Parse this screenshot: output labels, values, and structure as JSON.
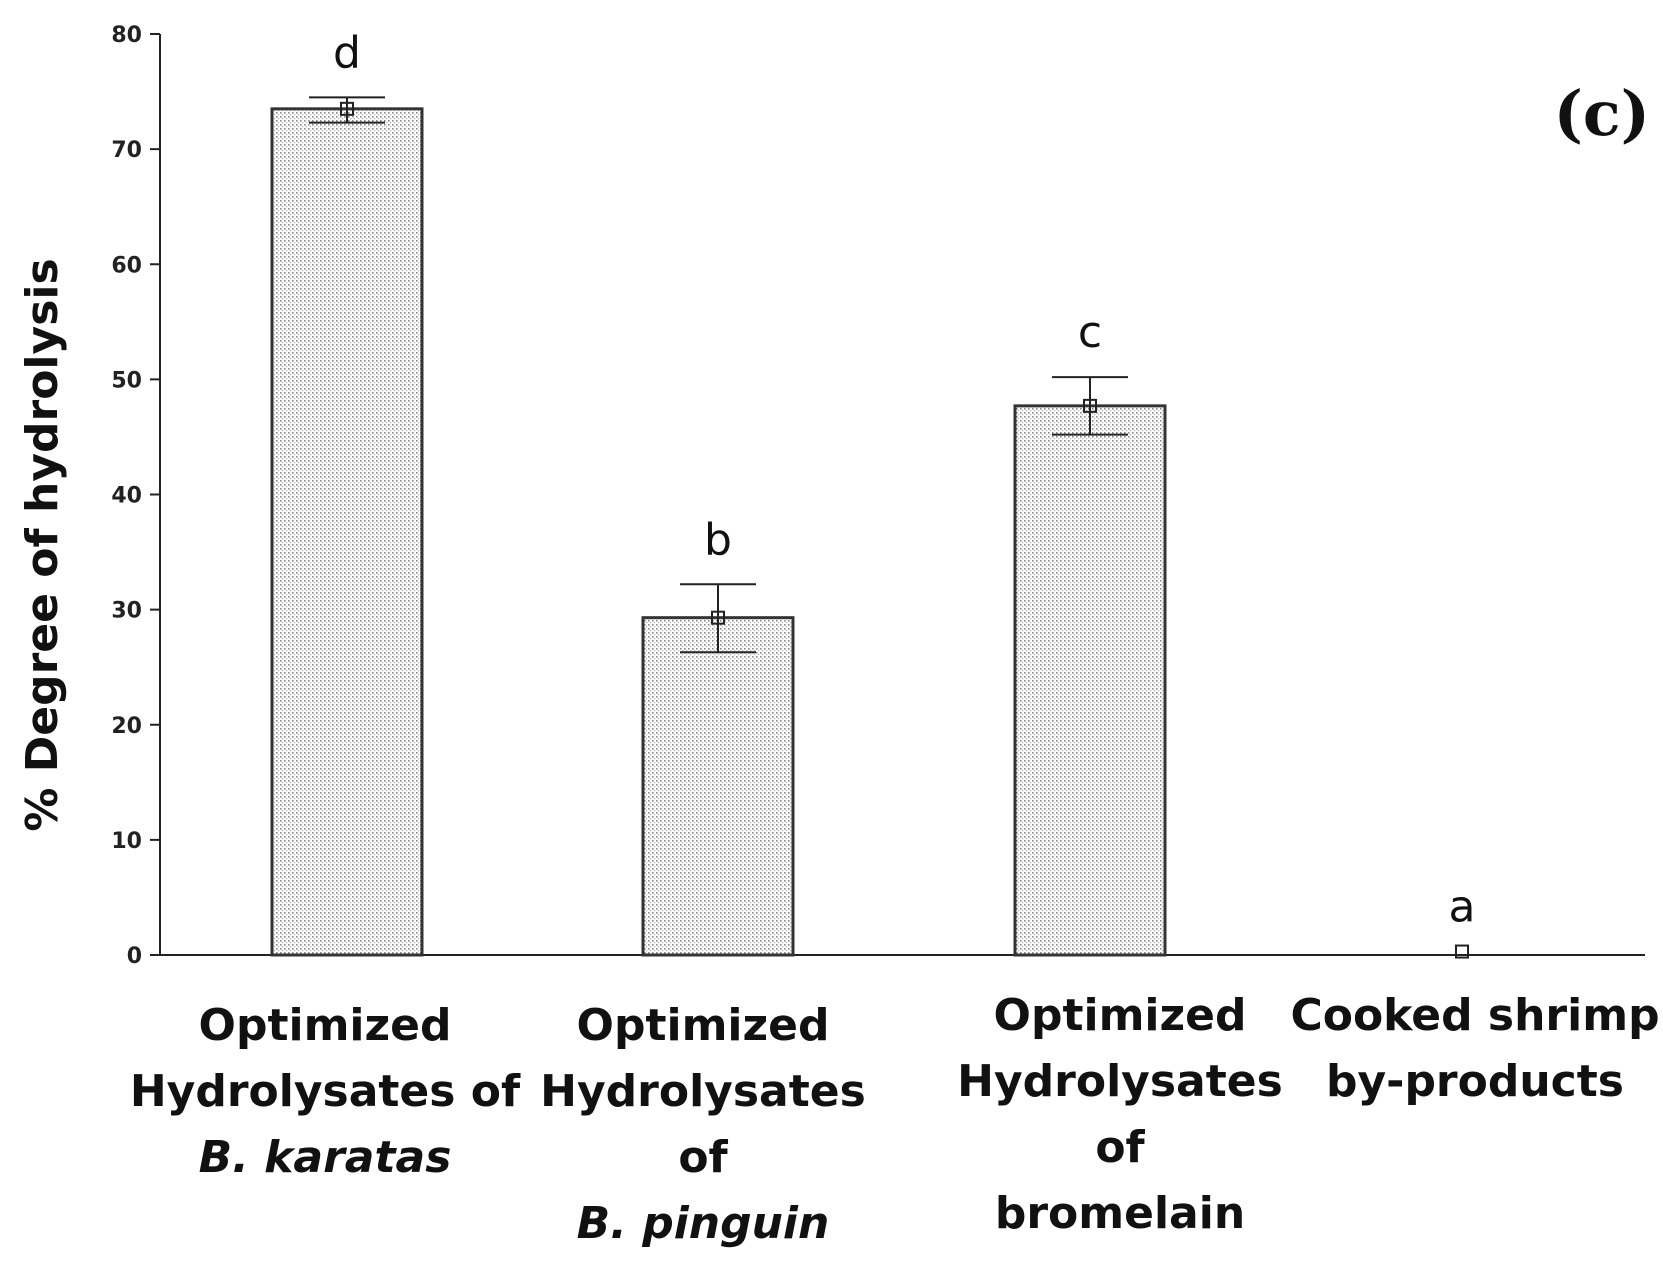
{
  "chart_data": {
    "type": "bar",
    "title": "",
    "panel_label": "(c)",
    "xlabel": "",
    "ylabel": "% Degree of hydrolysis",
    "ylim": [
      0,
      80
    ],
    "yticks": [
      0,
      10,
      20,
      30,
      40,
      50,
      60,
      70,
      80
    ],
    "grid": false,
    "categories": [
      {
        "lines": [
          "Optimized",
          "Hydrolysates of",
          "B. karatas"
        ],
        "italic_line": 2
      },
      {
        "lines": [
          "Optimized",
          "Hydrolysates",
          "of",
          "B. pinguin"
        ],
        "italic_line": 3
      },
      {
        "lines": [
          "Optimized",
          "Hydrolysates",
          "of",
          "bromelain"
        ],
        "italic_line": -1
      },
      {
        "lines": [
          "Cooked shrimp",
          "by-products"
        ],
        "italic_line": -1
      }
    ],
    "values": [
      73.5,
      29.3,
      47.7,
      0.3
    ],
    "error_upper": [
      74.5,
      32.2,
      50.2,
      0.3
    ],
    "error_lower": [
      72.3,
      26.3,
      45.2,
      0.3
    ],
    "significance_letters": [
      "d",
      "b",
      "c",
      "a"
    ]
  }
}
